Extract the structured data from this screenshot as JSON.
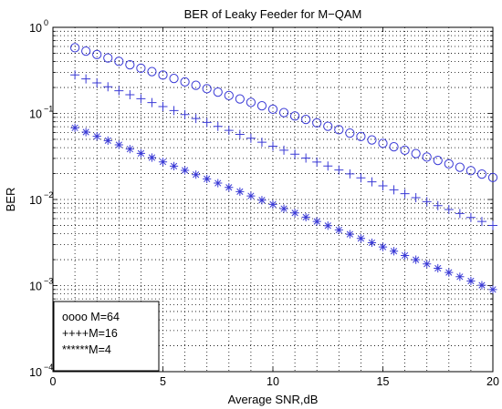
{
  "chart_data": {
    "type": "scatter",
    "title": "BER of Leaky Feeder for M−QAM",
    "xlabel": "Average SNR,dB",
    "ylabel": "BER",
    "xlim": [
      0,
      20
    ],
    "ylim": [
      0.0001,
      1
    ],
    "yscale": "log",
    "grid": true,
    "legend_position": "bottom-left",
    "xticks": [
      0,
      5,
      10,
      15,
      20
    ],
    "yticks": [
      {
        "value": 1,
        "mantissa": "10",
        "exp": "0"
      },
      {
        "value": 0.1,
        "mantissa": "10",
        "exp": "−1"
      },
      {
        "value": 0.01,
        "mantissa": "10",
        "exp": "−2"
      },
      {
        "value": 0.001,
        "mantissa": "10",
        "exp": "−3"
      },
      {
        "value": 0.0001,
        "mantissa": "10",
        "exp": "−4"
      }
    ],
    "x": [
      1,
      1.5,
      2,
      2.5,
      3,
      3.5,
      4,
      4.5,
      5,
      5.5,
      6,
      6.5,
      7,
      7.5,
      8,
      8.5,
      9,
      9.5,
      10,
      10.5,
      11,
      11.5,
      12,
      12.5,
      13,
      13.5,
      14,
      14.5,
      15,
      15.5,
      16,
      16.5,
      17,
      17.5,
      18,
      18.5,
      19,
      19.5,
      20
    ],
    "series": [
      {
        "label": "oooo M=64",
        "marker": "o",
        "start": 0.58,
        "end": 0.018
      },
      {
        "label": "++++M=16",
        "marker": "+",
        "start": 0.28,
        "end": 0.005
      },
      {
        "label": "******M=4",
        "marker": "*",
        "start": 0.068,
        "end": 0.0009
      }
    ],
    "colors": {
      "markers": "#3a3ad6",
      "axes": "#000000",
      "background": "#ffffff"
    }
  }
}
